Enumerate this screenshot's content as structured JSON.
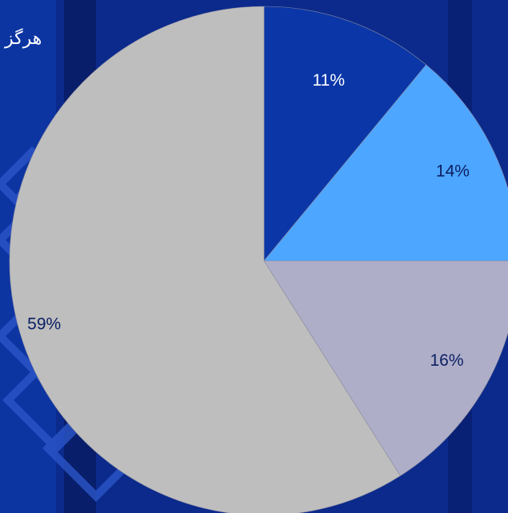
{
  "background_text": "هرگز",
  "chart_data": {
    "type": "pie",
    "title": "",
    "start_angle_deg": 0,
    "direction": "clockwise",
    "slices": [
      {
        "label": "11%",
        "value": 11,
        "color": "#0a36a8",
        "label_color": "#ffffff"
      },
      {
        "label": "14%",
        "value": 14,
        "color": "#4da6ff",
        "label_color": "#0b1f63"
      },
      {
        "label": "16%",
        "value": 16,
        "color": "#aeaec8",
        "label_color": "#0b1f63"
      },
      {
        "label": "59%",
        "value": 59,
        "color": "#bebebe",
        "label_color": "#0b1f63"
      }
    ],
    "legend": "none"
  },
  "colors": {
    "background": "#0b2a8c",
    "background_band_dark": "#081e6b",
    "background_band_light": "#1040b8"
  }
}
